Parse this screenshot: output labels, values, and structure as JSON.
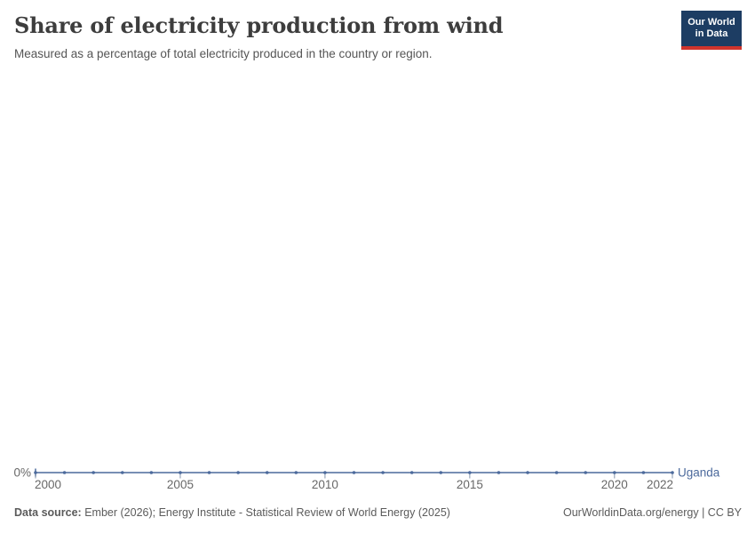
{
  "header": {
    "title": "Share of electricity production from wind",
    "subtitle": "Measured as a percentage of total electricity produced in the country or region.",
    "logo": {
      "line1": "Our World",
      "line2": "in Data",
      "bg_color": "#1d3d63",
      "bar_color": "#d0342c"
    }
  },
  "chart_data": {
    "type": "line",
    "title": "Share of electricity production from wind",
    "x": [
      2000,
      2001,
      2002,
      2003,
      2004,
      2005,
      2006,
      2007,
      2008,
      2009,
      2010,
      2011,
      2012,
      2013,
      2014,
      2015,
      2016,
      2017,
      2018,
      2019,
      2020,
      2021,
      2022
    ],
    "series": [
      {
        "name": "Uganda",
        "values": [
          0,
          0,
          0,
          0,
          0,
          0,
          0,
          0,
          0,
          0,
          0,
          0,
          0,
          0,
          0,
          0,
          0,
          0,
          0,
          0,
          0,
          0,
          0
        ],
        "color": "#4c6a9c"
      }
    ],
    "xlabel": "",
    "ylabel": "",
    "x_ticks": [
      2000,
      2005,
      2010,
      2015,
      2020,
      2022
    ],
    "y_tick_labels": [
      "0%"
    ],
    "ylim": [
      0,
      1
    ],
    "grid": false,
    "legend_position": "end-of-line"
  },
  "axis": {
    "zero_label": "0%"
  },
  "footer": {
    "source_label": "Data source:",
    "source_text": "Ember (2026); Energy Institute - Statistical Review of World Energy (2025)",
    "right_text": "OurWorldinData.org/energy | CC BY"
  },
  "colors": {
    "line": "#4c6a9c",
    "axis_text": "#686868",
    "tick": "#8494ab",
    "title": "#3d3d3d",
    "subtitle": "#555555"
  }
}
